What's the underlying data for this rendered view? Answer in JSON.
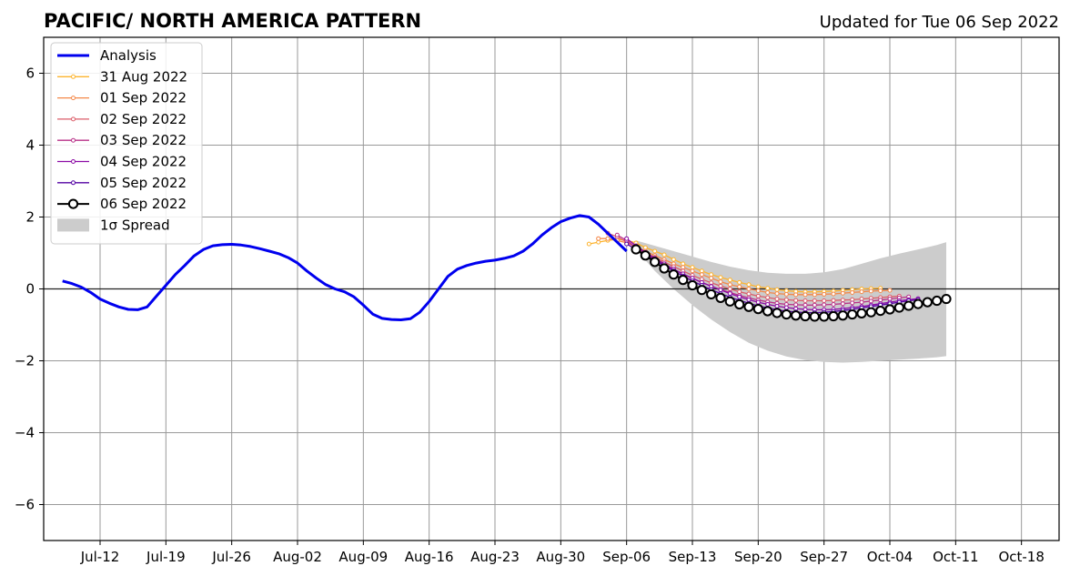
{
  "title": "PACIFIC/ NORTH AMERICA PATTERN",
  "updated": "Updated for Tue 06 Sep 2022",
  "colors": {
    "analysis": "#0000ee",
    "forecast_0831": "#fdb42f",
    "forecast_0901": "#f48849",
    "forecast_0902": "#db5c68",
    "forecast_0903": "#b93289",
    "forecast_0904": "#8b0aa5",
    "forecast_0905": "#5302a3",
    "forecast_0906": "#000000",
    "spread": "#cccccc",
    "grid": "#999999"
  },
  "chart_data": {
    "type": "line",
    "ylim": [
      -7,
      7
    ],
    "xlim": [
      "Jul-06",
      "Oct-22"
    ],
    "grid": true,
    "legend_position": "upper-left",
    "x_tick_labels": [
      "Jul-12",
      "Jul-19",
      "Jul-26",
      "Aug-02",
      "Aug-09",
      "Aug-16",
      "Aug-23",
      "Aug-30",
      "Sep-06",
      "Sep-13",
      "Sep-20",
      "Sep-27",
      "Oct-04",
      "Oct-11",
      "Oct-18"
    ],
    "y_tick_labels": [
      "−6",
      "−4",
      "−2",
      "0",
      "2",
      "4",
      "6"
    ],
    "y_ticks": [
      -6,
      -4,
      -2,
      0,
      2,
      4,
      6
    ],
    "zero_line": 0,
    "legend": [
      "Analysis",
      "31 Aug 2022",
      "01 Sep 2022",
      "02 Sep 2022",
      "03 Sep 2022",
      "04 Sep 2022",
      "05 Sep 2022",
      "06 Sep 2022",
      "1σ Spread"
    ],
    "analysis": {
      "name": "Analysis",
      "x": [
        "Jul-08",
        "Jul-09",
        "Jul-10",
        "Jul-11",
        "Jul-12",
        "Jul-13",
        "Jul-14",
        "Jul-15",
        "Jul-16",
        "Jul-17",
        "Jul-18",
        "Jul-19",
        "Jul-20",
        "Jul-21",
        "Jul-22",
        "Jul-23",
        "Jul-24",
        "Jul-25",
        "Jul-26",
        "Jul-27",
        "Jul-28",
        "Jul-29",
        "Jul-30",
        "Jul-31",
        "Aug-01",
        "Aug-02",
        "Aug-03",
        "Aug-04",
        "Aug-05",
        "Aug-06",
        "Aug-07",
        "Aug-08",
        "Aug-09",
        "Aug-10",
        "Aug-11",
        "Aug-12",
        "Aug-13",
        "Aug-14",
        "Aug-15",
        "Aug-16",
        "Aug-17",
        "Aug-18",
        "Aug-19",
        "Aug-20",
        "Aug-21",
        "Aug-22",
        "Aug-23",
        "Aug-24",
        "Aug-25",
        "Aug-26",
        "Aug-27",
        "Aug-28",
        "Aug-29",
        "Aug-30",
        "Aug-31",
        "Sep-01",
        "Sep-02",
        "Sep-03",
        "Sep-04",
        "Sep-05",
        "Sep-06"
      ],
      "y": [
        0.22,
        0.15,
        0.05,
        -0.1,
        -0.28,
        -0.4,
        -0.5,
        -0.57,
        -0.58,
        -0.5,
        -0.2,
        0.1,
        0.4,
        0.65,
        0.92,
        1.1,
        1.2,
        1.23,
        1.24,
        1.22,
        1.18,
        1.12,
        1.05,
        0.98,
        0.87,
        0.72,
        0.5,
        0.3,
        0.12,
        0.0,
        -0.08,
        -0.22,
        -0.45,
        -0.7,
        -0.82,
        -0.85,
        -0.86,
        -0.83,
        -0.65,
        -0.35,
        0.0,
        0.35,
        0.55,
        0.65,
        0.72,
        0.77,
        0.8,
        0.85,
        0.92,
        1.05,
        1.25,
        1.5,
        1.7,
        1.87,
        1.97,
        2.04,
        2.0,
        1.8,
        1.55,
        1.3,
        1.05
      ]
    },
    "series": [
      {
        "name": "31 Aug 2022",
        "x": [
          "Sep-02",
          "Sep-03",
          "Sep-04",
          "Sep-05",
          "Sep-06",
          "Sep-07",
          "Sep-08",
          "Sep-09",
          "Sep-10",
          "Sep-11",
          "Sep-12",
          "Sep-13",
          "Sep-14",
          "Sep-15",
          "Sep-16",
          "Sep-17",
          "Sep-18",
          "Sep-19",
          "Sep-20",
          "Sep-21",
          "Sep-22",
          "Sep-23",
          "Sep-24",
          "Sep-25",
          "Sep-26",
          "Sep-27",
          "Sep-28",
          "Sep-29",
          "Sep-30",
          "Oct-01",
          "Oct-02",
          "Oct-03"
        ],
        "y": [
          1.25,
          1.3,
          1.35,
          1.38,
          1.35,
          1.28,
          1.15,
          1.05,
          0.95,
          0.82,
          0.7,
          0.6,
          0.5,
          0.4,
          0.32,
          0.25,
          0.18,
          0.12,
          0.06,
          0.02,
          -0.02,
          -0.05,
          -0.07,
          -0.08,
          -0.08,
          -0.07,
          -0.06,
          -0.04,
          -0.02,
          0.0,
          0.01,
          0.02
        ]
      },
      {
        "name": "01 Sep 2022",
        "x": [
          "Sep-03",
          "Sep-04",
          "Sep-05",
          "Sep-06",
          "Sep-07",
          "Sep-08",
          "Sep-09",
          "Sep-10",
          "Sep-11",
          "Sep-12",
          "Sep-13",
          "Sep-14",
          "Sep-15",
          "Sep-16",
          "Sep-17",
          "Sep-18",
          "Sep-19",
          "Sep-20",
          "Sep-21",
          "Sep-22",
          "Sep-23",
          "Sep-24",
          "Sep-25",
          "Sep-26",
          "Sep-27",
          "Sep-28",
          "Sep-29",
          "Sep-30",
          "Oct-01",
          "Oct-02",
          "Oct-03",
          "Oct-04"
        ],
        "y": [
          1.4,
          1.4,
          1.35,
          1.28,
          1.18,
          1.05,
          0.93,
          0.82,
          0.7,
          0.6,
          0.5,
          0.4,
          0.3,
          0.2,
          0.12,
          0.06,
          0.0,
          -0.05,
          -0.1,
          -0.13,
          -0.15,
          -0.16,
          -0.16,
          -0.16,
          -0.15,
          -0.14,
          -0.12,
          -0.1,
          -0.08,
          -0.06,
          -0.05,
          -0.04
        ]
      },
      {
        "name": "02 Sep 2022",
        "x": [
          "Sep-04",
          "Sep-05",
          "Sep-06",
          "Sep-07",
          "Sep-08",
          "Sep-09",
          "Sep-10",
          "Sep-11",
          "Sep-12",
          "Sep-13",
          "Sep-14",
          "Sep-15",
          "Sep-16",
          "Sep-17",
          "Sep-18",
          "Sep-19",
          "Sep-20",
          "Sep-21",
          "Sep-22",
          "Sep-23",
          "Sep-24",
          "Sep-25",
          "Sep-26",
          "Sep-27",
          "Sep-28",
          "Sep-29",
          "Sep-30",
          "Oct-01",
          "Oct-02",
          "Oct-03",
          "Oct-04",
          "Oct-05"
        ],
        "y": [
          1.55,
          1.45,
          1.3,
          1.15,
          1.0,
          0.88,
          0.75,
          0.62,
          0.5,
          0.38,
          0.27,
          0.17,
          0.08,
          0.0,
          -0.08,
          -0.14,
          -0.2,
          -0.24,
          -0.28,
          -0.3,
          -0.32,
          -0.33,
          -0.33,
          -0.33,
          -0.32,
          -0.31,
          -0.3,
          -0.28,
          -0.26,
          -0.24,
          -0.22,
          -0.2
        ]
      },
      {
        "name": "03 Sep 2022",
        "x": [
          "Sep-05",
          "Sep-06",
          "Sep-07",
          "Sep-08",
          "Sep-09",
          "Sep-10",
          "Sep-11",
          "Sep-12",
          "Sep-13",
          "Sep-14",
          "Sep-15",
          "Sep-16",
          "Sep-17",
          "Sep-18",
          "Sep-19",
          "Sep-20",
          "Sep-21",
          "Sep-22",
          "Sep-23",
          "Sep-24",
          "Sep-25",
          "Sep-26",
          "Sep-27",
          "Sep-28",
          "Sep-29",
          "Sep-30",
          "Oct-01",
          "Oct-02",
          "Oct-03",
          "Oct-04",
          "Oct-05",
          "Oct-06"
        ],
        "y": [
          1.5,
          1.35,
          1.15,
          0.98,
          0.82,
          0.68,
          0.54,
          0.41,
          0.29,
          0.18,
          0.08,
          -0.02,
          -0.1,
          -0.18,
          -0.25,
          -0.31,
          -0.36,
          -0.4,
          -0.43,
          -0.44,
          -0.45,
          -0.45,
          -0.44,
          -0.43,
          -0.41,
          -0.39,
          -0.37,
          -0.34,
          -0.31,
          -0.28,
          -0.25,
          -0.22
        ]
      },
      {
        "name": "04 Sep 2022",
        "x": [
          "Sep-06",
          "Sep-07",
          "Sep-08",
          "Sep-09",
          "Sep-10",
          "Sep-11",
          "Sep-12",
          "Sep-13",
          "Sep-14",
          "Sep-15",
          "Sep-16",
          "Sep-17",
          "Sep-18",
          "Sep-19",
          "Sep-20",
          "Sep-21",
          "Sep-22",
          "Sep-23",
          "Sep-24",
          "Sep-25",
          "Sep-26",
          "Sep-27",
          "Sep-28",
          "Sep-29",
          "Sep-30",
          "Oct-01",
          "Oct-02",
          "Oct-03",
          "Oct-04",
          "Oct-05",
          "Oct-06",
          "Oct-07"
        ],
        "y": [
          1.4,
          1.2,
          1.02,
          0.85,
          0.7,
          0.55,
          0.42,
          0.3,
          0.18,
          0.07,
          -0.03,
          -0.13,
          -0.22,
          -0.3,
          -0.37,
          -0.43,
          -0.48,
          -0.52,
          -0.55,
          -0.57,
          -0.58,
          -0.58,
          -0.57,
          -0.55,
          -0.52,
          -0.49,
          -0.45,
          -0.41,
          -0.37,
          -0.33,
          -0.3,
          -0.27
        ]
      },
      {
        "name": "05 Sep 2022",
        "x": [
          "Sep-06",
          "Sep-07",
          "Sep-08",
          "Sep-09",
          "Sep-10",
          "Sep-11",
          "Sep-12",
          "Sep-13",
          "Sep-14",
          "Sep-15",
          "Sep-16",
          "Sep-17",
          "Sep-18",
          "Sep-19",
          "Sep-20",
          "Sep-21",
          "Sep-22",
          "Sep-23",
          "Sep-24",
          "Sep-25",
          "Sep-26",
          "Sep-27",
          "Sep-28",
          "Sep-29",
          "Sep-30",
          "Oct-01",
          "Oct-02",
          "Oct-03",
          "Oct-04",
          "Oct-05",
          "Oct-06",
          "Oct-07"
        ],
        "y": [
          1.25,
          1.1,
          0.95,
          0.8,
          0.65,
          0.5,
          0.36,
          0.22,
          0.1,
          -0.02,
          -0.13,
          -0.23,
          -0.32,
          -0.4,
          -0.47,
          -0.53,
          -0.58,
          -0.62,
          -0.64,
          -0.66,
          -0.66,
          -0.65,
          -0.63,
          -0.6,
          -0.57,
          -0.53,
          -0.49,
          -0.45,
          -0.41,
          -0.37,
          -0.33,
          -0.3
        ]
      },
      {
        "name": "06 Sep 2022",
        "x": [
          "Sep-07",
          "Sep-08",
          "Sep-09",
          "Sep-10",
          "Sep-11",
          "Sep-12",
          "Sep-13",
          "Sep-14",
          "Sep-15",
          "Sep-16",
          "Sep-17",
          "Sep-18",
          "Sep-19",
          "Sep-20",
          "Sep-21",
          "Sep-22",
          "Sep-23",
          "Sep-24",
          "Sep-25",
          "Sep-26",
          "Sep-27",
          "Sep-28",
          "Sep-29",
          "Sep-30",
          "Oct-01",
          "Oct-02",
          "Oct-03",
          "Oct-04",
          "Oct-05",
          "Oct-06",
          "Oct-07",
          "Oct-08",
          "Oct-09",
          "Oct-10"
        ],
        "y": [
          1.1,
          0.93,
          0.75,
          0.57,
          0.4,
          0.25,
          0.1,
          -0.03,
          -0.15,
          -0.25,
          -0.35,
          -0.43,
          -0.5,
          -0.56,
          -0.62,
          -0.67,
          -0.71,
          -0.74,
          -0.76,
          -0.77,
          -0.77,
          -0.76,
          -0.74,
          -0.71,
          -0.68,
          -0.65,
          -0.61,
          -0.57,
          -0.52,
          -0.47,
          -0.42,
          -0.37,
          -0.33,
          -0.28
        ]
      }
    ],
    "spread": {
      "name": "1σ Spread",
      "x": [
        "Sep-07",
        "Sep-09",
        "Sep-11",
        "Sep-13",
        "Sep-15",
        "Sep-17",
        "Sep-19",
        "Sep-21",
        "Sep-23",
        "Sep-25",
        "Sep-27",
        "Sep-29",
        "Oct-01",
        "Oct-03",
        "Oct-05",
        "Oct-07",
        "Oct-09",
        "Oct-10"
      ],
      "upper": [
        1.35,
        1.2,
        1.05,
        0.9,
        0.75,
        0.62,
        0.52,
        0.45,
        0.42,
        0.42,
        0.46,
        0.55,
        0.7,
        0.85,
        0.98,
        1.1,
        1.22,
        1.3
      ],
      "lower": [
        1.1,
        0.5,
        0.0,
        -0.45,
        -0.85,
        -1.2,
        -1.5,
        -1.72,
        -1.88,
        -1.98,
        -2.03,
        -2.05,
        -2.03,
        -2.0,
        -1.97,
        -1.94,
        -1.9,
        -1.87
      ]
    }
  }
}
